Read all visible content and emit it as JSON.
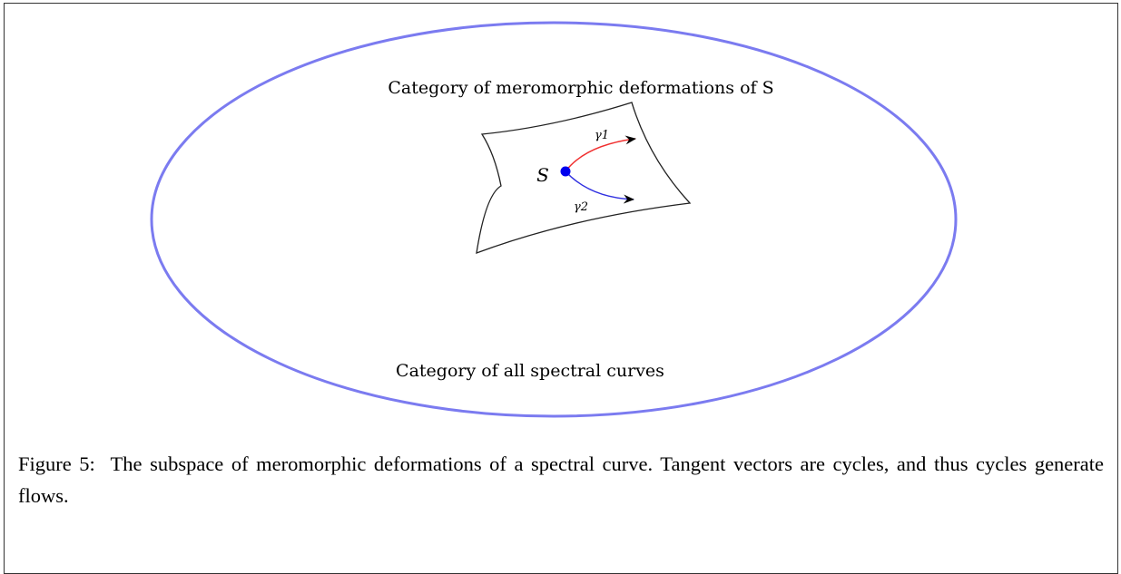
{
  "figure": {
    "outer_label": "Category of all spectral curves",
    "inner_label": "Category of meromorphic deformations of S",
    "point_label": "S",
    "cycles": [
      "γ1",
      "γ2"
    ],
    "caption": {
      "label": "Figure 5:",
      "text": "The subspace of meromorphic deformations of a spectral curve. Tangent vectors are cycles, and thus cycles generate flows."
    }
  }
}
